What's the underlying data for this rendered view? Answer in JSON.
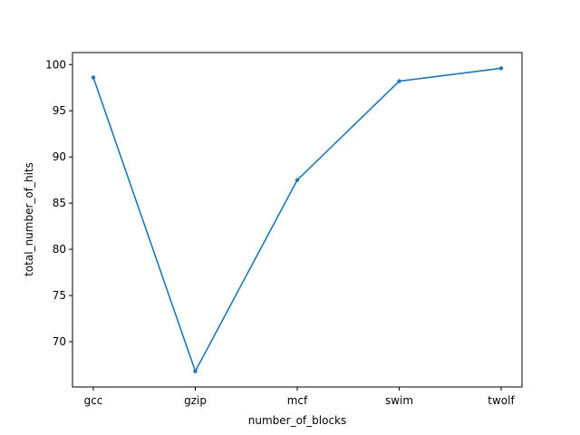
{
  "chart_data": {
    "type": "line",
    "categories": [
      "gcc",
      "gzip",
      "mcf",
      "swim",
      "twolf"
    ],
    "series": [
      {
        "values": [
          98.6,
          66.8,
          87.5,
          98.2,
          99.6
        ]
      }
    ],
    "xlabel": "number_of_blocks",
    "ylabel": "total_number_of_hits",
    "ylim": [
      65.1,
      101.3
    ],
    "yticks": [
      70,
      75,
      80,
      85,
      90,
      95,
      100
    ],
    "grid": false,
    "color": "#1f77b4"
  }
}
